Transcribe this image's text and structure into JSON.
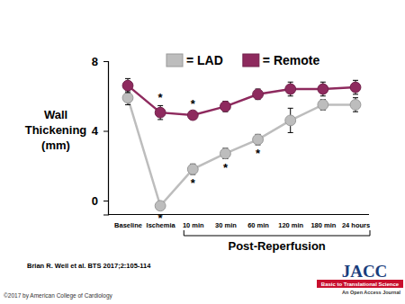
{
  "chart_data": {
    "type": "line",
    "y_label": "Wall Thickening (mm)",
    "x_group_label": "Post-Reperfusion",
    "categories": [
      "Baseline",
      "Ischemia",
      "10 min",
      "30 min",
      "60 min",
      "120 min",
      "180 min",
      "24 hours"
    ],
    "series": [
      {
        "name": "= LAD",
        "color": "#bdbdbd",
        "marker": "circle",
        "values": [
          5.9,
          -0.3,
          1.8,
          2.7,
          3.5,
          4.6,
          5.5,
          5.5
        ],
        "error": [
          0.4,
          0.2,
          0.3,
          0.3,
          0.3,
          0.7,
          0.3,
          0.4
        ]
      },
      {
        "name": "= Remote",
        "color": "#8e2a5e",
        "marker": "circle",
        "values": [
          6.6,
          5.05,
          4.9,
          5.4,
          6.1,
          6.4,
          6.4,
          6.5
        ],
        "error": [
          0.4,
          0.4,
          0.2,
          0.3,
          0.3,
          0.4,
          0.4,
          0.4
        ]
      }
    ],
    "annotations": [
      {
        "text": "*",
        "series": "= Remote",
        "x": "Ischemia"
      },
      {
        "text": "*",
        "series": "= Remote",
        "x": "10 min"
      },
      {
        "text": "*",
        "series": "= LAD",
        "x": "Ischemia"
      },
      {
        "text": "*",
        "series": "= LAD",
        "x": "10 min"
      },
      {
        "text": "*",
        "series": "= LAD",
        "x": "30 min"
      },
      {
        "text": "*",
        "series": "= LAD",
        "x": "60 min"
      }
    ],
    "ylim": [
      -0.8,
      8
    ],
    "yticks": [
      0,
      4,
      8
    ],
    "grid": false,
    "legend": "top"
  },
  "page": {
    "citation": "Brian R. Weil et al. BTS 2017;2:105-114",
    "copyright": "©2017 by American College of Cardiology",
    "logo_title": "JACC",
    "logo_subtitle": "Basic to Translational Science",
    "logo_tagline": "An Open Access Journal"
  }
}
